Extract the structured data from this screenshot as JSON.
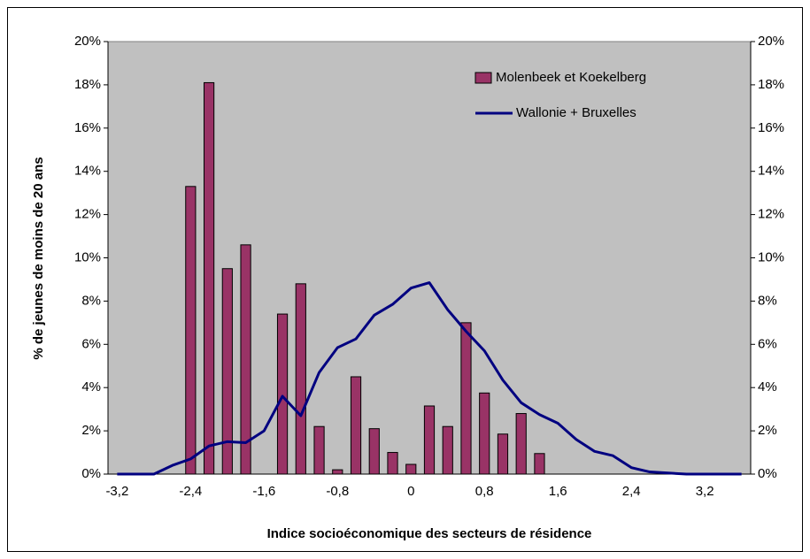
{
  "chart_data": {
    "type": "bar_line",
    "xlabel": "Indice socioéconomique des secteurs de résidence",
    "ylabel": "% de jeunes de moins de 20 ans",
    "categories": [
      "-3,2",
      null,
      null,
      null,
      "-2,4",
      null,
      null,
      null,
      "-1,6",
      null,
      null,
      null,
      "-0,8",
      null,
      null,
      null,
      "0",
      null,
      null,
      null,
      "0,8",
      null,
      null,
      null,
      "1,6",
      null,
      null,
      null,
      "2,4",
      null,
      null,
      null,
      "3,2",
      null,
      null
    ],
    "series": [
      {
        "name": "Molenbeek et Koekelberg",
        "type": "bar",
        "color": "#993366",
        "values": [
          null,
          null,
          null,
          null,
          13.3,
          18.1,
          9.5,
          10.6,
          null,
          7.4,
          8.8,
          2.2,
          0.2,
          4.5,
          2.1,
          1.0,
          0.45,
          3.15,
          2.2,
          7.0,
          3.75,
          1.85,
          2.8,
          0.95,
          null,
          null,
          null,
          null,
          null,
          null,
          null,
          null,
          null,
          null,
          null
        ]
      },
      {
        "name": "Wallonie + Bruxelles",
        "type": "line",
        "color": "#000080",
        "values": [
          0,
          0,
          0,
          0.4,
          0.7,
          1.3,
          1.5,
          1.45,
          2.0,
          3.6,
          2.7,
          4.7,
          5.85,
          6.25,
          7.35,
          7.85,
          8.6,
          8.85,
          7.6,
          6.6,
          5.7,
          4.35,
          3.3,
          2.75,
          2.35,
          1.6,
          1.05,
          0.85,
          0.3,
          0.1,
          0.05,
          0,
          0,
          0,
          0
        ]
      }
    ],
    "ylim": [
      0,
      20
    ],
    "yticks": [
      {
        "value": 0,
        "label": "0%"
      },
      {
        "value": 2,
        "label": "2%"
      },
      {
        "value": 4,
        "label": "4%"
      },
      {
        "value": 6,
        "label": "6%"
      },
      {
        "value": 8,
        "label": "8%"
      },
      {
        "value": 10,
        "label": "10%"
      },
      {
        "value": 12,
        "label": "12%"
      },
      {
        "value": 14,
        "label": "14%"
      },
      {
        "value": 16,
        "label": "16%"
      },
      {
        "value": 18,
        "label": "18%"
      },
      {
        "value": 20,
        "label": "20%"
      }
    ],
    "y2lim": [
      0,
      20
    ],
    "y2ticks": [
      {
        "value": 0,
        "label": "0%"
      },
      {
        "value": 2,
        "label": "2%"
      },
      {
        "value": 4,
        "label": "4%"
      },
      {
        "value": 6,
        "label": "6%"
      },
      {
        "value": 8,
        "label": "8%"
      },
      {
        "value": 10,
        "label": "10%"
      },
      {
        "value": 12,
        "label": "12%"
      },
      {
        "value": 14,
        "label": "14%"
      },
      {
        "value": 16,
        "label": "16%"
      },
      {
        "value": 18,
        "label": "18%"
      },
      {
        "value": 20,
        "label": "20%"
      }
    ],
    "legend": "upper right",
    "plot_background": "#c0c0c0"
  }
}
